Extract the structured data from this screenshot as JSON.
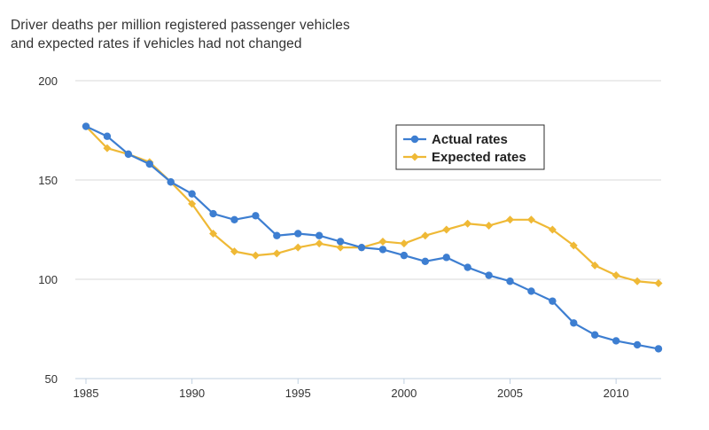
{
  "chart_data": {
    "type": "line",
    "title": "Driver deaths per million registered passenger vehicles",
    "subtitle": "and expected rates if vehicles had not changed",
    "xlabel": "",
    "ylabel": "",
    "xlim": [
      1985,
      2012
    ],
    "ylim": [
      50,
      200
    ],
    "x_ticks": [
      "1985",
      "1990",
      "1995",
      "2000",
      "2005",
      "2010"
    ],
    "y_ticks": [
      "50",
      "100",
      "150",
      "200"
    ],
    "grid": true,
    "legend_position": "top-right",
    "x": [
      1985,
      1986,
      1987,
      1988,
      1989,
      1990,
      1991,
      1992,
      1993,
      1994,
      1995,
      1996,
      1997,
      1998,
      1999,
      2000,
      2001,
      2002,
      2003,
      2004,
      2005,
      2006,
      2007,
      2008,
      2009,
      2010,
      2011,
      2012
    ],
    "series": [
      {
        "name": "Actual rates",
        "color": "#3d7ed1",
        "marker": "circle",
        "values": [
          177,
          172,
          163,
          158,
          149,
          143,
          133,
          130,
          132,
          122,
          123,
          122,
          119,
          116,
          115,
          112,
          109,
          111,
          106,
          102,
          99,
          94,
          89,
          78,
          72,
          69,
          67,
          65
        ]
      },
      {
        "name": "Expected rates",
        "color": "#efb936",
        "marker": "diamond",
        "values": [
          177,
          166,
          163,
          159,
          149,
          138,
          123,
          114,
          112,
          113,
          116,
          118,
          116,
          116,
          119,
          118,
          122,
          125,
          128,
          127,
          130,
          130,
          125,
          117,
          107,
          102,
          99,
          98
        ]
      }
    ]
  }
}
